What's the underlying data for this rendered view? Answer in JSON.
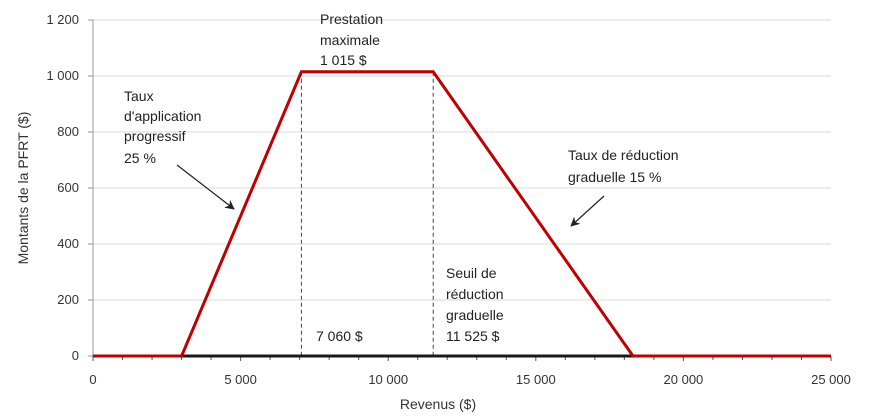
{
  "chart_data": {
    "type": "line",
    "xlabel": "Revenus ($)",
    "ylabel": "Montants de la PFRT ($)",
    "xlim": [
      0,
      25000
    ],
    "ylim": [
      0,
      1200
    ],
    "x_ticks": [
      0,
      5000,
      10000,
      15000,
      20000,
      25000
    ],
    "x_tick_labels": [
      "0",
      "5 000",
      "10 000",
      "15 000",
      "20 000",
      "25 000"
    ],
    "y_ticks": [
      0,
      200,
      400,
      600,
      800,
      1000,
      1200
    ],
    "y_tick_labels": [
      "0",
      "200",
      "400",
      "600",
      "800",
      "1 000",
      "1 200"
    ],
    "grid": "horizontal",
    "series": [
      {
        "color": "#c00000",
        "x": [
          0,
          3000,
          7060,
          11525,
          18292,
          25000
        ],
        "y": [
          0,
          0,
          1015,
          1015,
          0,
          0
        ]
      }
    ],
    "reference_lines": [
      {
        "x": 7060,
        "y": 1015,
        "style": "dashed"
      },
      {
        "x": 11525,
        "y": 1015,
        "style": "dashed"
      }
    ],
    "annotations": {
      "phase_in": [
        "Taux",
        "d'application",
        "progressif",
        "25 %"
      ],
      "max_benefit": [
        "Prestation",
        "maximale",
        "1 015 $"
      ],
      "reduction_rate": [
        "Taux de réduction",
        "graduelle 15 %"
      ],
      "threshold_label": [
        "Seuil de",
        "réduction",
        "graduelle",
        "11 525 $"
      ],
      "phase_in_end_label": "7 060 $"
    }
  }
}
